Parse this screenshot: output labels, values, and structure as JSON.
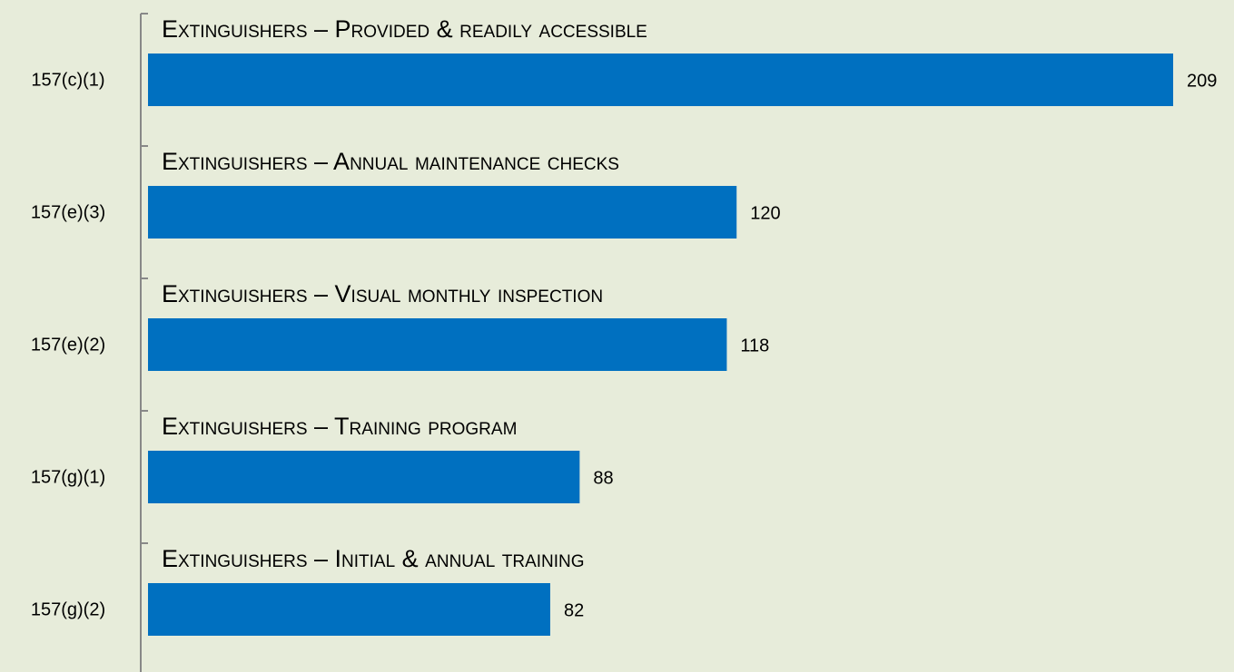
{
  "chart_data": {
    "type": "hbar",
    "categories": [
      "157(c)(1)",
      "157(e)(3)",
      "157(e)(2)",
      "157(g)(1)",
      "157(g)(2)"
    ],
    "annotations": [
      "Extinguishers – Provided & readily accessible",
      "Extinguishers – Annual maintenance checks",
      "Extinguishers – Visual monthly inspection",
      "Extinguishers – Training program",
      "Extinguishers – Initial & annual training"
    ],
    "values": [
      209,
      120,
      118,
      88,
      82
    ],
    "color": "#0070c0"
  }
}
